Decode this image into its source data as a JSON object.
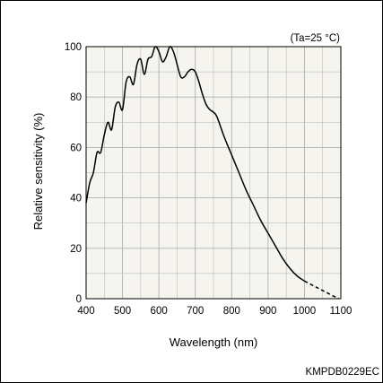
{
  "chart_data": {
    "type": "line",
    "title": "",
    "condition": "(Ta=25 °C)",
    "xlabel": "Wavelength (nm)",
    "ylabel": "Relative sensitivity (%)",
    "xlim": [
      400,
      1100
    ],
    "ylim": [
      0,
      100
    ],
    "x_ticks": [
      400,
      500,
      600,
      700,
      800,
      900,
      1000,
      1100
    ],
    "y_ticks": [
      0,
      20,
      40,
      60,
      80,
      100
    ],
    "x_tick_labels": [
      "400",
      "500",
      "600",
      "700",
      "800",
      "900",
      "1000",
      "1100"
    ],
    "y_tick_labels": [
      "0",
      "20",
      "40",
      "60",
      "80",
      "100"
    ],
    "x_minor_step": 50,
    "y_minor_step": 10,
    "grid": true,
    "plot_background": "#f5f4ee",
    "grid_color": "#b0b0b0",
    "line_color": "#000000",
    "series": [
      {
        "style": "solid",
        "x": [
          400,
          410,
          420,
          430,
          440,
          450,
          460,
          470,
          480,
          490,
          500,
          510,
          520,
          530,
          540,
          550,
          560,
          570,
          580,
          590,
          600,
          610,
          620,
          630,
          640,
          650,
          660,
          670,
          680,
          690,
          700,
          710,
          720,
          730,
          740,
          750,
          760,
          780,
          800,
          820,
          840,
          860,
          880,
          900,
          920,
          940,
          960,
          980,
          1000
        ],
        "y": [
          38,
          46,
          50,
          58,
          58,
          65,
          70,
          67,
          76,
          78,
          75,
          86,
          88,
          85,
          93,
          95,
          89,
          95,
          96,
          100,
          98,
          94,
          96,
          100,
          98,
          93,
          88,
          88,
          90,
          91,
          90,
          86,
          81,
          77,
          75,
          74,
          72,
          64,
          57,
          50,
          43,
          37,
          31,
          26,
          21,
          16,
          12,
          9,
          7
        ]
      },
      {
        "style": "dashed",
        "x": [
          1000,
          1020,
          1040,
          1060,
          1080,
          1095
        ],
        "y": [
          7,
          5.5,
          4,
          2.5,
          1,
          0
        ]
      }
    ]
  },
  "footer": {
    "code": "KMPDB0229EC"
  }
}
